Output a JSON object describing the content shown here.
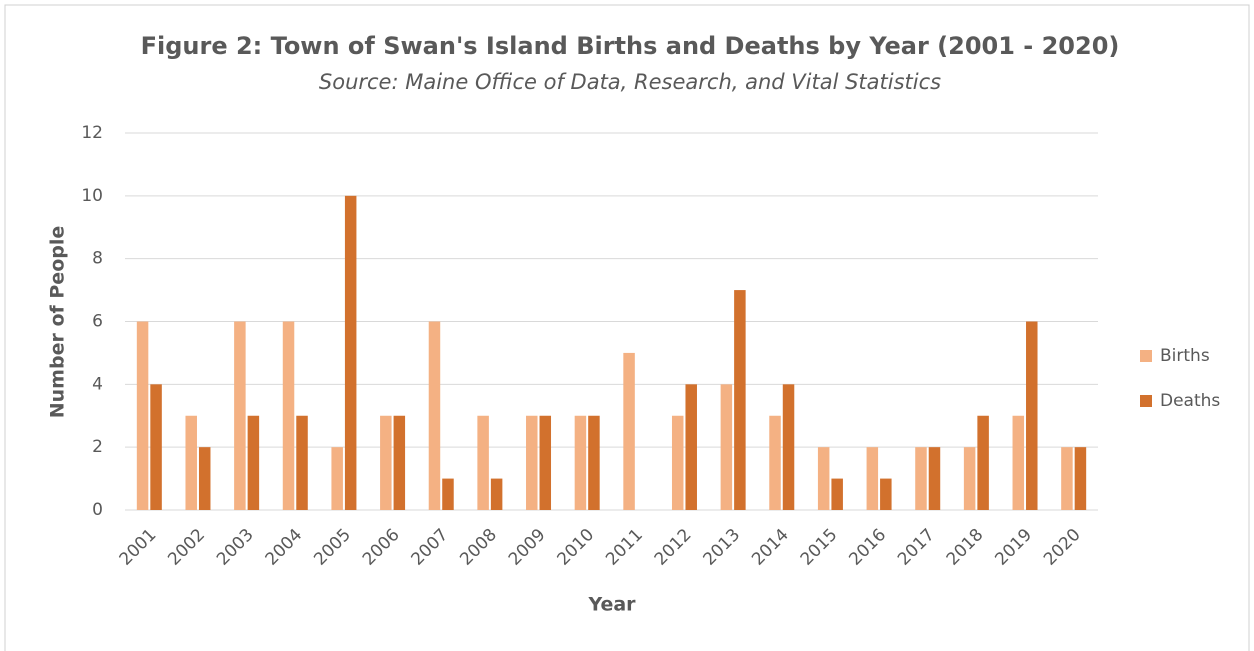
{
  "chart_data": {
    "type": "bar",
    "title": "Figure 2: Town of Swan's Island Births and Deaths by Year (2001 - 2020)",
    "subtitle": "Source: Maine Office of Data, Research, and Vital Statistics",
    "x_label": "Year",
    "y_label": "Number of People",
    "categories": [
      "2001",
      "2002",
      "2003",
      "2004",
      "2005",
      "2006",
      "2007",
      "2008",
      "2009",
      "2010",
      "2011",
      "2012",
      "2013",
      "2014",
      "2015",
      "2016",
      "2017",
      "2018",
      "2019",
      "2020"
    ],
    "series": [
      {
        "name": "Births",
        "color": "#f4b183",
        "values": [
          6,
          3,
          6,
          6,
          2,
          3,
          6,
          3,
          3,
          3,
          5,
          3,
          4,
          3,
          2,
          2,
          2,
          2,
          3,
          2
        ]
      },
      {
        "name": "Deaths",
        "color": "#d2712d",
        "values": [
          4,
          2,
          3,
          3,
          10,
          3,
          1,
          1,
          3,
          3,
          0,
          4,
          7,
          4,
          1,
          1,
          2,
          3,
          6,
          2
        ]
      }
    ],
    "ylim": [
      0,
      12
    ],
    "yticks": [
      0,
      2,
      4,
      6,
      8,
      10,
      12
    ],
    "grid": true,
    "legend": "right"
  }
}
